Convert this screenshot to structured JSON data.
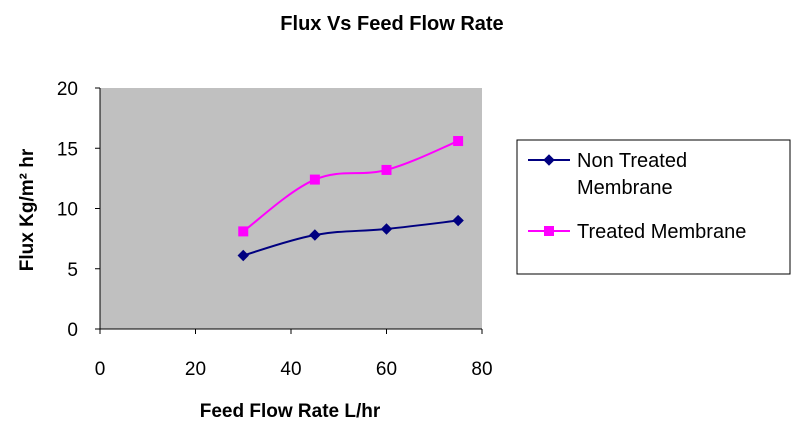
{
  "chart_data": {
    "type": "line",
    "title": "Flux Vs Feed Flow Rate",
    "xlabel": "Feed Flow Rate L/hr",
    "ylabel": "Flux Kg/m² hr",
    "xlim": [
      0,
      80
    ],
    "ylim": [
      0,
      20
    ],
    "xticks": [
      0,
      20,
      40,
      60,
      80
    ],
    "yticks": [
      0,
      5,
      10,
      15,
      20
    ],
    "grid": false,
    "plot_background": "#c0c0c0",
    "legend_position": "right",
    "series": [
      {
        "name": "Non Treated Membrane",
        "name_lines": [
          "Non Treated",
          "Membrane"
        ],
        "color": "#000080",
        "marker": "diamond",
        "x": [
          30,
          45,
          60,
          75
        ],
        "y": [
          6.1,
          7.8,
          8.3,
          9.0
        ]
      },
      {
        "name": "Treated Membrane",
        "name_lines": [
          "Treated Membrane"
        ],
        "color": "#ff00ff",
        "marker": "square",
        "x": [
          30,
          45,
          60,
          75
        ],
        "y": [
          8.1,
          12.4,
          13.2,
          15.6
        ]
      }
    ]
  }
}
